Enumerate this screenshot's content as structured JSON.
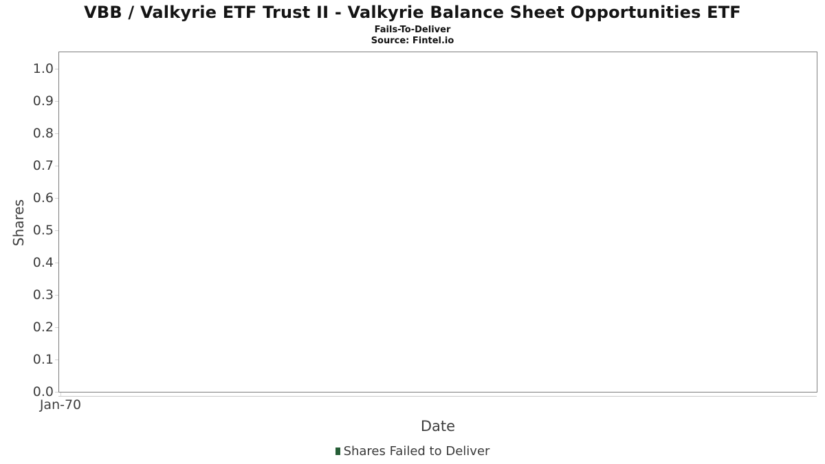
{
  "chart_data": {
    "type": "bar",
    "title": "VBB / Valkyrie ETF Trust II - Valkyrie Balance Sheet Opportunities ETF",
    "subtitle": "Fails-To-Deliver",
    "source": "Source: Fintel.io",
    "xlabel": "Date",
    "ylabel": "Shares",
    "x_tick_labels": [
      "Jan-70"
    ],
    "y_ticks": [
      0.0,
      0.1,
      0.2,
      0.3,
      0.4,
      0.5,
      0.6,
      0.7,
      0.8,
      0.9,
      1.0
    ],
    "y_tick_labels": [
      "0.0",
      "0.1",
      "0.2",
      "0.3",
      "0.4",
      "0.5",
      "0.6",
      "0.7",
      "0.8",
      "0.9",
      "1.0"
    ],
    "ylim": [
      0,
      1.05
    ],
    "grid": true,
    "legend_position": "bottom",
    "categories": [],
    "series": [
      {
        "name": "Shares Failed to Deliver",
        "color": "#265e37",
        "values": []
      }
    ]
  },
  "colors": {
    "plot_border": "#7d7d7d",
    "gridline": "#e8e8e8",
    "gridline_v": "#d9d9d9",
    "axis_line": "#c9c9c9",
    "tick_mark": "#cfcfcf",
    "tick_label": "#3c3c3c",
    "legend_green": "#265e37"
  }
}
